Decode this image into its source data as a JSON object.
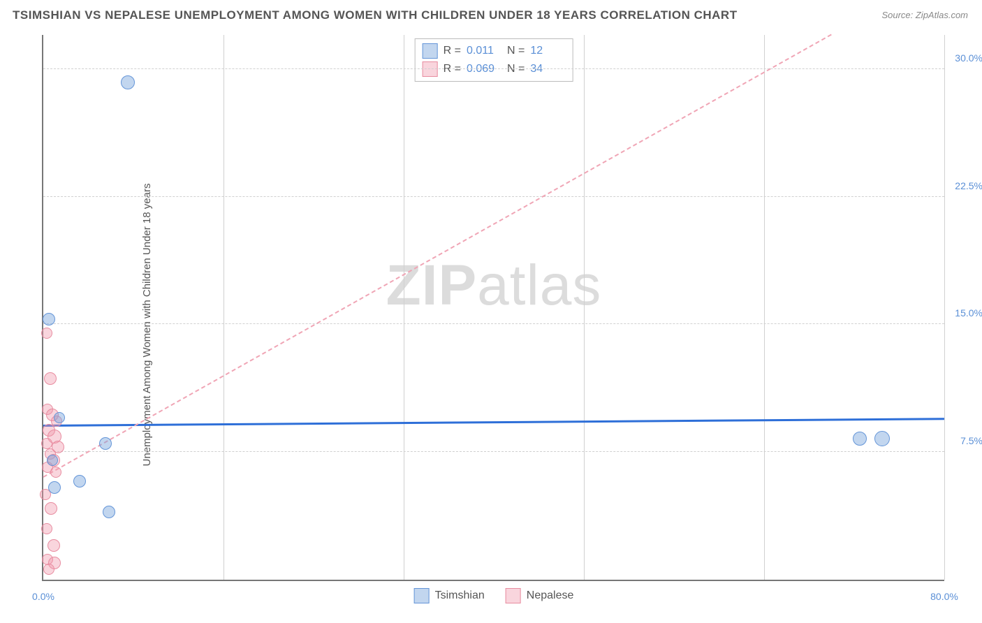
{
  "title": "TSIMSHIAN VS NEPALESE UNEMPLOYMENT AMONG WOMEN WITH CHILDREN UNDER 18 YEARS CORRELATION CHART",
  "source": "Source: ZipAtlas.com",
  "watermark_bold": "ZIP",
  "watermark_rest": "atlas",
  "y_axis_label": "Unemployment Among Women with Children Under 18 years",
  "chart": {
    "type": "scatter",
    "background_color": "#ffffff",
    "grid_color": "#d0d0d0",
    "axis_color": "#777777",
    "xlim": [
      0,
      80
    ],
    "ylim": [
      0,
      32
    ],
    "x_ticks": [
      0,
      16,
      32,
      48,
      64,
      80
    ],
    "x_tick_labels": [
      "0.0%",
      "",
      "",
      "",
      "",
      "80.0%"
    ],
    "y_ticks": [
      7.5,
      15.0,
      22.5,
      30.0
    ],
    "y_tick_labels": [
      "7.5%",
      "15.0%",
      "22.5%",
      "30.0%"
    ],
    "marker_radius": 8,
    "series": [
      {
        "name": "Tsimshian",
        "color_fill": "rgba(120,165,220,0.45)",
        "color_stroke": "#6495d8",
        "css_class": "blue",
        "R": "0.011",
        "N": "12",
        "trend": {
          "x1": 0,
          "y1": 9.0,
          "x2": 80,
          "y2": 9.4,
          "style": "solid",
          "color": "#2e6fd8",
          "width": 3
        },
        "points": [
          {
            "x": 7.5,
            "y": 29.2,
            "r": 9
          },
          {
            "x": 0.5,
            "y": 15.3,
            "r": 8
          },
          {
            "x": 5.5,
            "y": 8.0,
            "r": 8
          },
          {
            "x": 3.2,
            "y": 5.8,
            "r": 8
          },
          {
            "x": 1.0,
            "y": 5.4,
            "r": 8
          },
          {
            "x": 5.8,
            "y": 4.0,
            "r": 8
          },
          {
            "x": 1.4,
            "y": 9.5,
            "r": 7
          },
          {
            "x": 0.8,
            "y": 7.0,
            "r": 7
          },
          {
            "x": 72.5,
            "y": 8.3,
            "r": 9
          },
          {
            "x": 74.5,
            "y": 8.3,
            "r": 10
          }
        ]
      },
      {
        "name": "Nepalese",
        "color_fill": "rgba(240,150,170,0.40)",
        "color_stroke": "#e88ca0",
        "css_class": "pink",
        "R": "0.069",
        "N": "34",
        "trend": {
          "x1": 0,
          "y1": 6.0,
          "x2": 70,
          "y2": 32.0,
          "style": "dashed",
          "color": "#f0a5b5",
          "width": 2
        },
        "points": [
          {
            "x": 0.3,
            "y": 14.5,
            "r": 7
          },
          {
            "x": 0.6,
            "y": 11.8,
            "r": 8
          },
          {
            "x": 0.4,
            "y": 10.0,
            "r": 7
          },
          {
            "x": 0.8,
            "y": 9.7,
            "r": 8
          },
          {
            "x": 1.2,
            "y": 9.3,
            "r": 7
          },
          {
            "x": 0.5,
            "y": 8.8,
            "r": 8
          },
          {
            "x": 1.0,
            "y": 8.4,
            "r": 9
          },
          {
            "x": 0.3,
            "y": 8.0,
            "r": 7
          },
          {
            "x": 1.3,
            "y": 7.8,
            "r": 8
          },
          {
            "x": 0.6,
            "y": 7.4,
            "r": 7
          },
          {
            "x": 0.9,
            "y": 7.0,
            "r": 8
          },
          {
            "x": 0.4,
            "y": 6.6,
            "r": 7
          },
          {
            "x": 1.1,
            "y": 6.3,
            "r": 7
          },
          {
            "x": 0.2,
            "y": 5.0,
            "r": 7
          },
          {
            "x": 0.7,
            "y": 4.2,
            "r": 8
          },
          {
            "x": 0.3,
            "y": 3.0,
            "r": 7
          },
          {
            "x": 0.9,
            "y": 2.0,
            "r": 8
          },
          {
            "x": 0.4,
            "y": 1.2,
            "r": 7
          },
          {
            "x": 1.0,
            "y": 1.0,
            "r": 8
          },
          {
            "x": 0.5,
            "y": 0.6,
            "r": 7
          }
        ]
      }
    ],
    "stats_labels": {
      "R": "R  =",
      "N": "N  ="
    },
    "bottom_legend": [
      "Tsimshian",
      "Nepalese"
    ]
  }
}
